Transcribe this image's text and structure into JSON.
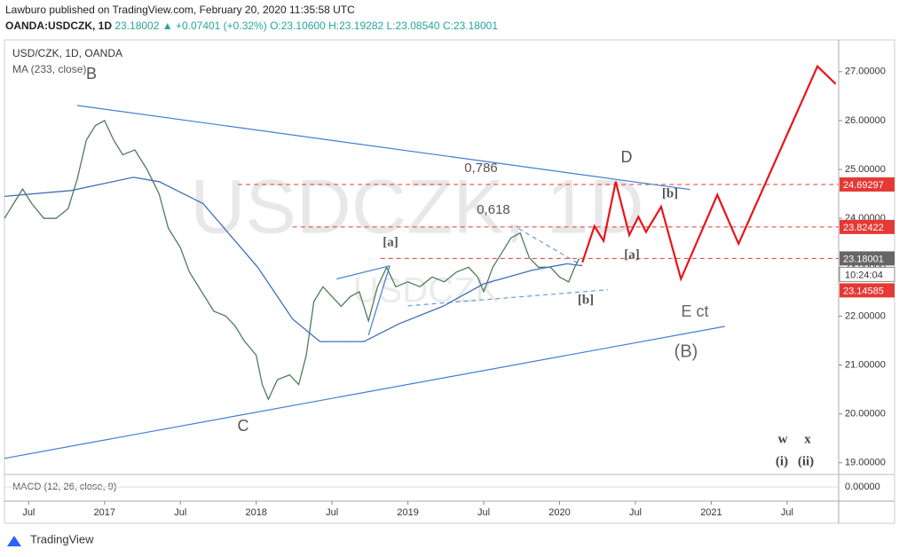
{
  "header": {
    "published": "Lawburo published on TradingView.com, February 20, 2020 11:35:58 UTC",
    "symbol": "OANDA:USDCZK, 1D",
    "last": "23.18002",
    "change": "▲ +0.07401 (+0.32%)",
    "open": "O:23.10600",
    "high": "H:23.19282",
    "low": "L:23.08540",
    "close": "C:23.18001"
  },
  "chart_data": {
    "type": "line",
    "title": "USD/CZK, 1D, OANDA",
    "indicator": "MA (233, close)",
    "watermark": "USDCZK, 1D",
    "watermark_small": "USDCZK",
    "xlim": [
      2016.34,
      2021.84
    ],
    "ylim": [
      18.76,
      27.65
    ],
    "xticks": [
      {
        "value": 2016.5,
        "label": "Jul"
      },
      2017,
      {
        "value": 2017.5,
        "label": "Jul"
      },
      2018,
      {
        "value": 2018.5,
        "label": "Jul"
      },
      2019,
      {
        "value": 2019.5,
        "label": "Jul"
      },
      2020,
      {
        "value": 2020.5,
        "label": "Jul"
      },
      2021,
      {
        "value": 2021.5,
        "label": "Jul"
      }
    ],
    "yticks": [
      {
        "value": 19,
        "label": "19.00000"
      },
      {
        "value": 20,
        "label": "20.00000"
      },
      {
        "value": 21,
        "label": "21.00000"
      },
      {
        "value": 22,
        "label": "22.00000"
      },
      {
        "value": 23,
        "label": "23.00000"
      },
      {
        "value": 24,
        "label": "24.00000"
      },
      {
        "value": 25,
        "label": "25.00000"
      },
      {
        "value": 26,
        "label": "26.00000"
      },
      {
        "value": 27,
        "label": "27.00000"
      }
    ],
    "series": [
      {
        "name": "USD/CZK",
        "color": "#4d7d5a",
        "x": [
          2016.34,
          2016.4,
          2016.46,
          2016.52,
          2016.6,
          2016.68,
          2016.76,
          2016.82,
          2016.88,
          2016.94,
          2017.0,
          2017.06,
          2017.12,
          2017.2,
          2017.28,
          2017.36,
          2017.42,
          2017.5,
          2017.56,
          2017.64,
          2017.72,
          2017.8,
          2017.86,
          2017.92,
          2018.0,
          2018.04,
          2018.08,
          2018.14,
          2018.22,
          2018.28,
          2018.33,
          2018.38,
          2018.44,
          2018.5,
          2018.56,
          2018.62,
          2018.68,
          2018.74,
          2018.8,
          2018.86,
          2018.92,
          2019.0,
          2019.08,
          2019.16,
          2019.24,
          2019.32,
          2019.4,
          2019.46,
          2019.5,
          2019.56,
          2019.62,
          2019.68,
          2019.74,
          2019.8,
          2019.86,
          2019.94,
          2020.0,
          2020.06,
          2020.1,
          2020.13
        ],
        "values": [
          24.0,
          24.3,
          24.6,
          24.3,
          24.0,
          24.0,
          24.2,
          24.8,
          25.6,
          25.9,
          26.0,
          25.6,
          25.3,
          25.4,
          25.0,
          24.5,
          23.8,
          23.4,
          22.9,
          22.5,
          22.1,
          22.0,
          21.8,
          21.5,
          21.2,
          20.6,
          20.3,
          20.7,
          20.8,
          20.6,
          21.2,
          22.3,
          22.6,
          22.4,
          22.2,
          22.4,
          22.5,
          21.9,
          22.6,
          23.0,
          22.6,
          22.7,
          22.6,
          22.8,
          22.7,
          22.9,
          23.0,
          22.8,
          22.5,
          23.0,
          23.3,
          23.6,
          23.7,
          23.2,
          23.0,
          23.0,
          22.8,
          22.7,
          23.0,
          23.18
        ]
      },
      {
        "name": "MA (233, close)",
        "color": "#3f6fb5",
        "x": [
          2016.34,
          2016.78,
          2017.19,
          2017.36,
          2017.65,
          2018.01,
          2018.24,
          2018.42,
          2018.71,
          2018.94,
          2019.23,
          2019.5,
          2019.82,
          2020.05,
          2020.15
        ],
        "values": [
          24.45,
          24.57,
          24.84,
          24.75,
          24.3,
          23.0,
          21.94,
          21.48,
          21.48,
          21.84,
          22.2,
          22.66,
          22.94,
          23.07,
          23.03
        ]
      },
      {
        "name": "Projection",
        "color": "#e8141c",
        "x": [
          2020.15,
          2020.23,
          2020.29,
          2020.37,
          2020.46,
          2020.52,
          2020.57,
          2020.67,
          2020.8,
          2021.04,
          2021.18,
          2021.7,
          2021.82
        ],
        "values": [
          23.1,
          23.84,
          23.54,
          24.75,
          23.66,
          24.03,
          23.72,
          24.24,
          22.76,
          24.48,
          23.48,
          27.11,
          26.75
        ]
      }
    ],
    "trend_lines": [
      {
        "x": [
          2016.82,
          2020.86
        ],
        "y": [
          26.31,
          24.59
        ],
        "color": "#3f7fd0",
        "dash": false
      },
      {
        "x": [
          2016.34,
          2021.09
        ],
        "y": [
          19.09,
          21.79
        ],
        "color": "#3f7fd0",
        "dash": false
      },
      {
        "x": [
          2018.53,
          2018.88
        ],
        "y": [
          22.76,
          23.03
        ],
        "color": "#3f7fd0",
        "dash": false
      },
      {
        "x": [
          2018.74,
          2018.88
        ],
        "y": [
          21.61,
          23.03
        ],
        "color": "#3f7fd0",
        "dash": false
      },
      {
        "x": [
          2019.0,
          2020.32
        ],
        "y": [
          22.21,
          22.54
        ],
        "color": "#6a9ad8",
        "dash": true
      },
      {
        "x": [
          2019.73,
          2020.15
        ],
        "y": [
          23.79,
          23.03
        ],
        "color": "#6a9ad8",
        "dash": true
      }
    ],
    "levels": [
      {
        "value": 24.69297,
        "label": "24.69297",
        "from": 2017.88
      },
      {
        "value": 23.82422,
        "label": "23.82422",
        "from": 2018.24
      },
      {
        "value": 23.18001,
        "label": "23.18001",
        "from": 2018.82
      }
    ],
    "price_tags": {
      "countdown": "10:24:04",
      "low": "23.14585"
    },
    "annotations": [
      "B",
      "C",
      "D",
      "0,786",
      "0,618",
      "[a]",
      "[b]",
      "[a]",
      "[b]",
      "E ct",
      "(B)",
      "w",
      "x",
      "(i)",
      "(ii)"
    ],
    "macd": {
      "label": "MACD (12, 26, close, 9)",
      "yticks": [
        {
          "value": 0,
          "label": "0.00000"
        }
      ]
    },
    "footer": "TradingView"
  }
}
